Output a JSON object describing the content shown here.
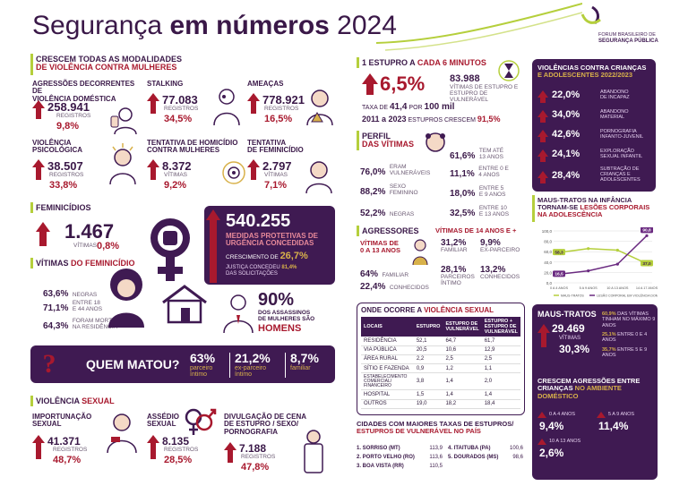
{
  "header": {
    "title_pre": "Segurança ",
    "title_bold": "em números",
    "title_year": " 2024",
    "brand_line1": "FORUM BRASILEIRO DE",
    "brand_line2": "SEGURANÇA PÚBLICA"
  },
  "crescem": {
    "title1": "CRESCEM TODAS AS MODALIDADES",
    "title2": "DE VIOLÊNCIA CONTRA MULHERES",
    "items": [
      {
        "label1": "AGRESSÕES DECORRENTES DE",
        "label2": "VIOLÊNCIA DOMÉSTICA",
        "value": "258.941",
        "unit": "REGISTROS",
        "pct": "9,8%"
      },
      {
        "label1": "STALKING",
        "label2": "",
        "value": "77.083",
        "unit": "REGISTROS",
        "pct": "34,5%"
      },
      {
        "label1": "AMEAÇAS",
        "label2": "",
        "value": "778.921",
        "unit": "REGISTROS",
        "pct": "16,5%"
      },
      {
        "label1": "VIOLÊNCIA",
        "label2": "PSICOLÓGICA",
        "value": "38.507",
        "unit": "REGISTROS",
        "pct": "33,8%"
      },
      {
        "label1": "TENTATIVA DE HOMICÍDIO",
        "label2": "CONTRA MULHERES",
        "value": "8.372",
        "unit": "VÍTIMAS",
        "pct": "9,2%"
      },
      {
        "label1": "TENTATIVA",
        "label2": "DE FEMINICÍDIO",
        "value": "2.797",
        "unit": "VÍTIMAS",
        "pct": "7,1%"
      }
    ]
  },
  "feminicidios": {
    "title": "FEMINICÍDIOS",
    "value": "1.467",
    "unit": "VÍTIMAS",
    "pct": "0,8%"
  },
  "medidas": {
    "value": "540.255",
    "label1": "MEDIDAS PROTETIVAS DE",
    "label2": "URGÊNCIA CONCEDIDAS",
    "growth_label": "CRESCIMENTO DE",
    "growth_value": "26,7%",
    "note1": "JUSTIÇA CONCEDEU",
    "note_pct": "81,4%",
    "note2": "DAS SOLICITAÇÕES"
  },
  "vitimas": {
    "title_pre": "VÍTIMAS",
    "title_hl": " DO FEMINICÍDIO",
    "rows": [
      {
        "pct": "63,6%",
        "label1": "NEGRAS",
        "label2": ""
      },
      {
        "pct": "71,1%",
        "label1": "ENTRE 18",
        "label2": "E 44 ANOS"
      },
      {
        "pct": "64,3%",
        "label1": "FORAM MORTAS",
        "label2": "NA RESIDÊNCIA"
      }
    ],
    "assassinos_pct": "90%",
    "assassinos_l1": "DOS ASSASSINOS",
    "assassinos_l2": "DE MULHERES SÃO",
    "assassinos_l3": "HOMENS"
  },
  "quem_matou": {
    "title": "QUEM MATOU?",
    "items": [
      {
        "pct": "63%",
        "l1": "parceiro",
        "l2": "íntimo"
      },
      {
        "pct": "21,2%",
        "l1": "ex-parceiro",
        "l2": "íntimo"
      },
      {
        "pct": "8,7%",
        "l1": "familiar",
        "l2": ""
      }
    ]
  },
  "violencia_sexual": {
    "title_pre": "VIOLÊNCIA",
    "title_hl": " SEXUAL",
    "items": [
      {
        "l1": "IMPORTUNAÇÃO",
        "l2": "SEXUAL",
        "l3": "",
        "value": "41.371",
        "unit": "REGISTROS",
        "pct": "48,7%"
      },
      {
        "l1": "ASSÉDIO",
        "l2": "SEXUAL",
        "l3": "",
        "value": "8.135",
        "unit": "REGISTROS",
        "pct": "28,5%"
      },
      {
        "l1": "DIVULGAÇÃO DE CENA",
        "l2": "DE ESTUPRO / SEXO/",
        "l3": "PORNOGRAFIA",
        "value": "7.188",
        "unit": "REGISTROS",
        "pct": "47,8%"
      }
    ]
  },
  "estupro": {
    "title_pre": "1 ESTUPRO A",
    "title_hl": " CADA 6 MINUTOS",
    "pct": "6,5%",
    "value": "83.988",
    "label1": "VÍTIMAS DE ESTUPRO E",
    "label2": "ESTUPRO DE VULNERÁVEL",
    "taxa_pre": "TAXA DE",
    "taxa_value": "41,4",
    "taxa_mid": " POR ",
    "taxa_base": "100 mil",
    "years_pre": "2011 a 2023",
    "years_mid": " ESTUPROS CRESCEM ",
    "years_pct": "91,5%"
  },
  "perfil": {
    "title_pre": "PERFIL",
    "title_hl": "DAS VÍTIMAS",
    "left": [
      {
        "pct": "76,0%",
        "l1": "ERAM",
        "l2": "VULNERÁVEIS"
      },
      {
        "pct": "88,2%",
        "l1": "SEXO",
        "l2": "FEMININO"
      },
      {
        "pct": "52,2%",
        "l1": "NEGRAS",
        "l2": ""
      }
    ],
    "right": [
      {
        "pct": "61,6%",
        "l1": "TEM ATÉ",
        "l2": "13 ANOS"
      },
      {
        "pct": "11,1%",
        "l1": "ENTRE 0 E",
        "l2": "4 ANOS"
      },
      {
        "pct": "18,0%",
        "l1": "ENTRE 5",
        "l2": "E 9 ANOS"
      },
      {
        "pct": "32,5%",
        "l1": "ENTRE 10",
        "l2": "E 13 ANOS"
      }
    ]
  },
  "agressores": {
    "title": "AGRESSORES",
    "sub_left1": "VÍTIMAS DE",
    "sub_left2": "0 A 13 ANOS",
    "sub_right": "VÍTIMAS DE 14 ANOS E +",
    "left": [
      {
        "pct": "64%",
        "label": "FAMILIAR"
      },
      {
        "pct": "22,4%",
        "label": "CONHECIDOS"
      }
    ],
    "right": [
      {
        "pct": "31,2%",
        "l1": "FAMILIAR",
        "l2": ""
      },
      {
        "pct": "9,9%",
        "l1": "EX-PARCEIRO",
        "l2": ""
      },
      {
        "pct": "28,1%",
        "l1": "PARCEIROS",
        "l2": "ÍNTIMO"
      },
      {
        "pct": "13,2%",
        "l1": "CONHECIDOS",
        "l2": ""
      }
    ]
  },
  "onde": {
    "title_pre": "ONDE OCORRE A",
    "title_hl": " VIOLÊNCIA SEXUAL",
    "headers": [
      "LOCAIS",
      "ESTUPRO",
      "ESTUPRO DE VULNERÁVEL",
      "ESTUPRO + ESTUPRO DE VULNERÁVEL"
    ],
    "rows": [
      [
        "RESIDÊNCIA",
        "52,1",
        "64,7",
        "61,7"
      ],
      [
        "VIA PÚBLICA",
        "20,5",
        "10,6",
        "12,9"
      ],
      [
        "ÁREA RURAL",
        "2,2",
        "2,5",
        "2,5"
      ],
      [
        "SÍTIO E FAZENDA",
        "0,9",
        "1,2",
        "1,1"
      ],
      [
        "ESTABELECIMENTO COMERCIAL/ FINANCEIRO",
        "3,8",
        "1,4",
        "2,0"
      ],
      [
        "HOSPITAL",
        "1,5",
        "1,4",
        "1,4"
      ],
      [
        "OUTROS",
        "19,0",
        "18,2",
        "18,4"
      ]
    ]
  },
  "cidades": {
    "title1": "CIDADES COM MAIORES TAXAS DE ESTUPROS/",
    "title2": "ESTUPROS DE VULNERÁVEL NO PAÍS",
    "left": [
      {
        "name": "1. SORRISO (MT)",
        "value": "113,9"
      },
      {
        "name": "2. PORTO VELHO (RO)",
        "value": "113,6"
      },
      {
        "name": "3. BOA VISTA (RR)",
        "value": "110,5"
      }
    ],
    "right": [
      {
        "name": "4. ITAITUBA (PA)",
        "value": "100,6"
      },
      {
        "name": "5. DOURADOS (MS)",
        "value": "98,6"
      }
    ]
  },
  "criancas": {
    "title1": "VIOLÊNCIAS CONTRA CRIANÇAS",
    "title2": "E ADOLESCENTES 2022/2023",
    "items": [
      {
        "pct": "22,0%",
        "l1": "ABANDONO",
        "l2": "DE INCAPAZ",
        "l3": ""
      },
      {
        "pct": "34,0%",
        "l1": "ABANDONO",
        "l2": "MATERIAL",
        "l3": ""
      },
      {
        "pct": "42,6%",
        "l1": "PORNOGRAFIA",
        "l2": "INFANTO-JUVENIL",
        "l3": ""
      },
      {
        "pct": "24,1%",
        "l1": "EXPLORAÇÃO",
        "l2": "SEXUAL INFANTIL",
        "l3": ""
      },
      {
        "pct": "28,4%",
        "l1": "SUBTRAÇÃO DE",
        "l2": "CRIANÇAS E",
        "l3": "ADOLESCENTES"
      }
    ]
  },
  "maus_infancia": {
    "title1": "MAUS-TRATOS NA INFÂNCIA",
    "title2_pre": "TORNAM-SE",
    "title2_hl": " LESÕES CORPORAIS",
    "title3": "NA ADOLESCÊNCIA",
    "legend1": "MAUS-TRATOS",
    "legend2": "LESÃO CORPORAL EM VIOLÊNCIA DOMÉSTICA"
  },
  "chart_data": {
    "type": "line",
    "categories": [
      "0 A 4 ANOS",
      "5 A 9 ANOS",
      "10 A 13 ANOS",
      "14 A 17 ANOS"
    ],
    "ylim": [
      0,
      100
    ],
    "yticks": [
      "100,0",
      "80,0",
      "60,0",
      "40,0",
      "20,0",
      "0,0"
    ],
    "series": [
      {
        "name": "MAUS-TRATOS",
        "color": "#b5cf3c",
        "values": [
          58.3,
          66,
          63,
          37.0
        ],
        "labels": [
          "58,3",
          "",
          "",
          "37,0"
        ]
      },
      {
        "name": "LESÃO CORPORAL EM VIOLÊNCIA DOMÉSTICA",
        "color": "#6a2a80",
        "values": [
          16.5,
          23,
          36,
          90.8
        ],
        "labels": [
          "16,5",
          "",
          "",
          "90,8"
        ]
      }
    ]
  },
  "maus_tratos": {
    "title": "MAUS-TRATOS",
    "value": "29.469",
    "unit": "VÍTIMAS",
    "pct": "30,3%",
    "notes": [
      {
        "pct": "60,9%",
        "text": "DAS VÍTIMAS TINHAM NO MÁXIMO 9 ANOS"
      },
      {
        "pct": "25,1%",
        "text": "ENTRE 0 E 4 ANOS"
      },
      {
        "pct": "35,7%",
        "text": "ENTRE 5 E 9 ANOS"
      }
    ]
  },
  "crescem_ag": {
    "title1": "CRESCEM AGRESSÕES ENTRE",
    "title2_pre": "CRIANÇAS",
    "title2_hl": " NO AMBIENTE",
    "title3": "DOMÉSTICO",
    "items": [
      {
        "label": "0 A 4 ANOS",
        "pct": "9,4%"
      },
      {
        "label": "5 A 9 ANOS",
        "pct": "11,4%"
      },
      {
        "label": "10 A 13 ANOS",
        "pct": "2,6%"
      }
    ]
  },
  "colors": {
    "purple": "#3f1a52",
    "red": "#a8192e",
    "gold": "#d8b14a",
    "lime": "#b5cf3c"
  }
}
